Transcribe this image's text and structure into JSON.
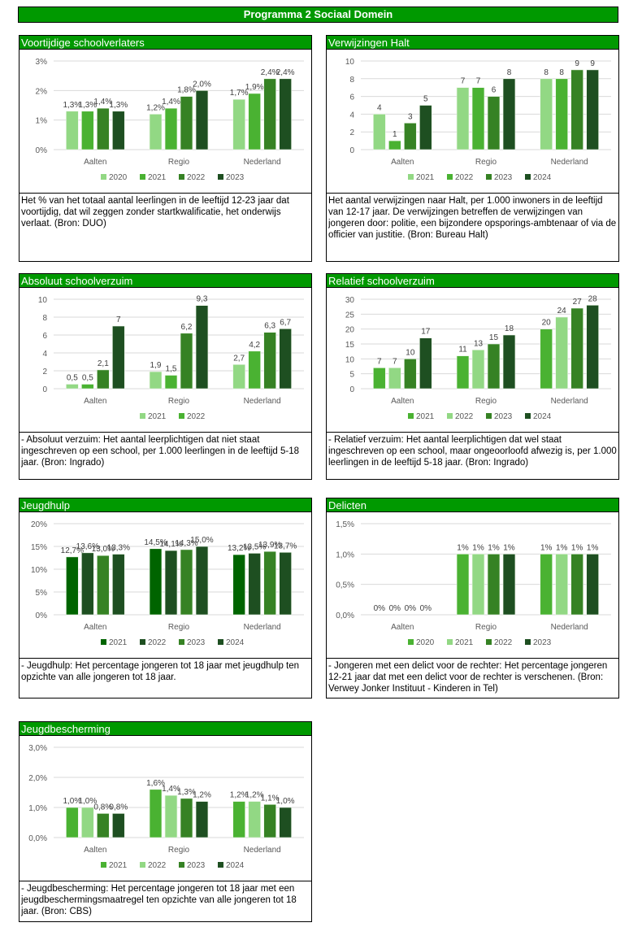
{
  "page_title": "Programma 2 Sociaal Domein",
  "colors": {
    "header": "#009900",
    "light": "#92d884",
    "mid": "#4ab232",
    "darker": "#368224",
    "darkest": "#1e4f21",
    "deep": "#006400"
  },
  "chart_data": [
    {
      "id": "p1",
      "type": "bar",
      "title": "Voortijdige schoolverlaters",
      "categories": [
        "Aalten",
        "Regio",
        "Nederland"
      ],
      "ylim": [
        0,
        3
      ],
      "y_ticks": [
        "0%",
        "1%",
        "2%",
        "3%"
      ],
      "label_format": {
        "decimals": 1,
        "suffix": "%"
      },
      "grid": true,
      "legend": "bottom",
      "series": [
        {
          "name": "2020",
          "color": "#92d884",
          "values": [
            1.3,
            1.2,
            1.7
          ]
        },
        {
          "name": "2021",
          "color": "#4ab232",
          "values": [
            1.3,
            1.4,
            1.9
          ]
        },
        {
          "name": "2022",
          "color": "#368224",
          "values": [
            1.4,
            1.8,
            2.4
          ]
        },
        {
          "name": "2023",
          "color": "#1e4f21",
          "values": [
            1.3,
            2.0,
            2.4
          ]
        }
      ],
      "description": "Het % van het totaal aantal leerlingen in de leeftijd  12-23 jaar dat voortijdig, dat wil zeggen zonder startkwalificatie, het onderwijs verlaat. (Bron: DUO)"
    },
    {
      "id": "p2",
      "type": "bar",
      "title": "Verwijzingen Halt",
      "categories": [
        "Aalten",
        "Regio",
        "Nederland"
      ],
      "ylim": [
        0,
        10
      ],
      "y_ticks": [
        "0",
        "2",
        "4",
        "6",
        "8",
        "10"
      ],
      "label_format": {
        "decimals": 0,
        "suffix": ""
      },
      "grid": true,
      "legend": "bottom",
      "series": [
        {
          "name": "2021",
          "color": "#92d884",
          "values": [
            4,
            7,
            8
          ]
        },
        {
          "name": "2022",
          "color": "#4ab232",
          "values": [
            1,
            7,
            8
          ]
        },
        {
          "name": "2023",
          "color": "#368224",
          "values": [
            3,
            6,
            9
          ]
        },
        {
          "name": "2024",
          "color": "#1e4f21",
          "values": [
            5,
            8,
            9
          ]
        }
      ],
      "description": "Het aantal verwijzingen naar Halt, per 1.000 inwoners in de leeftijd van 12-17 jaar. De verwijzingen betreffen de verwijzingen van jongeren door: politie, een bijzondere opsporings-ambtenaar of via de officier van justitie. (Bron: Bureau Halt)"
    },
    {
      "id": "p3",
      "type": "bar",
      "title": "Absoluut schoolverzuim",
      "categories": [
        "Aalten",
        "Regio",
        "Nederland"
      ],
      "ylim": [
        0,
        10
      ],
      "y_ticks": [
        "0",
        "2",
        "4",
        "6",
        "8",
        "10"
      ],
      "label_format": {
        "decimals": 1,
        "suffix": "",
        "trim_integer": true
      },
      "grid": true,
      "legend": "bottom",
      "series": [
        {
          "name": "2021",
          "color": "#92d884",
          "values": [
            0.5,
            1.9,
            2.7
          ]
        },
        {
          "name": "2022",
          "color": "#4ab232",
          "values": [
            0.5,
            1.5,
            4.2
          ]
        },
        {
          "name": "",
          "color": "#368224",
          "values": [
            2.1,
            6.2,
            6.3
          ]
        },
        {
          "name": "",
          "color": "#1e4f21",
          "values": [
            7,
            9.3,
            6.7
          ]
        }
      ],
      "description": "- Absoluut verzuim: Het aantal leerplichtigen dat niet staat ingeschreven op een school, per 1.000 leerlingen in de leeftijd 5-18 jaar. (Bron: Ingrado)"
    },
    {
      "id": "p4",
      "type": "bar",
      "title": "Relatief schoolverzuim",
      "categories": [
        "Aalten",
        "Regio",
        "Nederland"
      ],
      "ylim": [
        0,
        30
      ],
      "y_ticks": [
        "0",
        "5",
        "10",
        "15",
        "20",
        "25",
        "30"
      ],
      "label_format": {
        "decimals": 0,
        "suffix": ""
      },
      "grid": true,
      "legend": "bottom",
      "series": [
        {
          "name": "2021",
          "color": "#4ab232",
          "values": [
            7,
            11,
            20
          ]
        },
        {
          "name": "2022",
          "color": "#92d884",
          "values": [
            7,
            13,
            24
          ]
        },
        {
          "name": "2023",
          "color": "#368224",
          "values": [
            10,
            15,
            27
          ]
        },
        {
          "name": "2024",
          "color": "#1e4f21",
          "values": [
            17,
            18,
            28
          ]
        }
      ],
      "description": "- Relatief verzuim: Het aantal leerplichtigen dat wel staat ingeschreven op een school, maar ongeoorloofd afwezig is, per 1.000 leerlingen in de leeftijd 5-18 jaar. (Bron: Ingrado)"
    },
    {
      "id": "p5",
      "type": "bar",
      "title": "Jeugdhulp",
      "categories": [
        "Aalten",
        "Regio",
        "Nederland"
      ],
      "ylim": [
        0,
        20
      ],
      "y_ticks": [
        "0%",
        "5%",
        "10%",
        "15%",
        "20%"
      ],
      "label_format": {
        "decimals": 1,
        "suffix": "%"
      },
      "grid": true,
      "legend": "bottom",
      "series": [
        {
          "name": "2021",
          "color": "#006400",
          "values": [
            12.7,
            14.5,
            13.2
          ]
        },
        {
          "name": "2022",
          "color": "#1e4f21",
          "values": [
            13.6,
            14.1,
            13.5
          ]
        },
        {
          "name": "2023",
          "color": "#368224",
          "values": [
            13.0,
            14.3,
            13.9
          ]
        },
        {
          "name": "2024",
          "color": "#1e4f21",
          "values": [
            13.3,
            15.0,
            13.7
          ]
        }
      ],
      "description": "- Jeugdhulp: Het percentage jongeren tot 18 jaar met jeugdhulp ten opzichte van alle jongeren tot 18 jaar."
    },
    {
      "id": "p6",
      "type": "bar",
      "title": "Delicten",
      "categories": [
        "Aalten",
        "Regio",
        "Nederland"
      ],
      "ylim": [
        0,
        1.5
      ],
      "y_ticks": [
        "0,0%",
        "0,5%",
        "1,0%",
        "1,5%"
      ],
      "label_format": {
        "decimals": 0,
        "suffix": "%"
      },
      "grid": true,
      "legend": "bottom",
      "series": [
        {
          "name": "2020",
          "color": "#4ab232",
          "values": [
            0,
            1,
            1
          ]
        },
        {
          "name": "2021",
          "color": "#92d884",
          "values": [
            0,
            1,
            1
          ]
        },
        {
          "name": "2022",
          "color": "#368224",
          "values": [
            0,
            1,
            1
          ]
        },
        {
          "name": "2023",
          "color": "#1e4f21",
          "values": [
            0,
            1,
            1
          ]
        }
      ],
      "description": "- Jongeren met een delict voor de rechter: Het percentage jongeren 12-21 jaar dat met een delict voor de rechter is verschenen. (Bron: Verwey Jonker Instituut - Kinderen in Tel)"
    },
    {
      "id": "p7",
      "type": "bar",
      "title": "Jeugdbescherming",
      "categories": [
        "Aalten",
        "Regio",
        "Nederland"
      ],
      "ylim": [
        0,
        3
      ],
      "y_ticks": [
        "0,0%",
        "1,0%",
        "2,0%",
        "3,0%"
      ],
      "label_format": {
        "decimals": 1,
        "suffix": "%"
      },
      "grid": true,
      "legend": "bottom",
      "series": [
        {
          "name": "2021",
          "color": "#4ab232",
          "values": [
            1.0,
            1.6,
            1.2
          ]
        },
        {
          "name": "2022",
          "color": "#92d884",
          "values": [
            1.0,
            1.4,
            1.2
          ]
        },
        {
          "name": "2023",
          "color": "#368224",
          "values": [
            0.8,
            1.3,
            1.1
          ]
        },
        {
          "name": "2024",
          "color": "#1e4f21",
          "values": [
            0.8,
            1.2,
            1.0
          ]
        }
      ],
      "description": "- Jeugdbescherming: Het percentage jongeren tot 18 jaar met een jeugdbeschermingsmaatregel ten opzichte van alle jongeren tot 18 jaar. (Bron: CBS)"
    }
  ]
}
